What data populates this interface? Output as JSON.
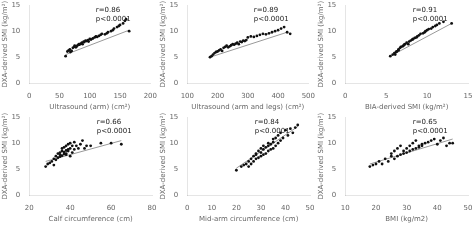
{
  "chart_data": [
    {
      "type": "scatter",
      "xlabel": "Ultrasound (arm) (cm²)",
      "ylabel": "DXA-derived SMI (kg/m²)",
      "annotations": [
        "r=0.86",
        "p<0.0001"
      ],
      "xlim": [
        0,
        200
      ],
      "xticks": [
        0,
        50,
        100,
        150,
        200
      ],
      "ylim": [
        0,
        15
      ],
      "yticks": [
        0,
        5,
        10,
        15
      ],
      "grid": false,
      "series": [
        {
          "type": "scatter",
          "color": "#111111",
          "x": [
            60,
            63,
            65,
            67,
            68,
            70,
            72,
            74,
            75,
            77,
            78,
            80,
            82,
            83,
            85,
            87,
            88,
            90,
            91,
            93,
            95,
            97,
            98,
            100,
            102,
            105,
            108,
            110,
            112,
            115,
            118,
            120,
            125,
            128,
            130,
            135,
            138,
            140,
            145,
            148,
            150,
            155,
            158,
            160,
            165
          ],
          "values": [
            5.2,
            6.1,
            6.3,
            6.5,
            6.0,
            6.2,
            6.8,
            7.0,
            7.2,
            6.9,
            7.1,
            7.3,
            7.5,
            7.4,
            7.6,
            7.8,
            7.5,
            8.0,
            7.9,
            8.2,
            8.1,
            8.3,
            8.0,
            8.5,
            8.4,
            8.6,
            8.8,
            9.0,
            8.9,
            9.1,
            9.3,
            9.5,
            9.4,
            9.6,
            9.8,
            10.0,
            10.2,
            10.5,
            10.8,
            11.0,
            11.2,
            11.5,
            12.0,
            12.3,
            10.0
          ]
        },
        {
          "type": "line",
          "color": "#999999",
          "x": [
            60,
            165
          ],
          "values": [
            5.5,
            10.2
          ]
        }
      ]
    },
    {
      "type": "scatter",
      "xlabel": "Ultrasound (arm and legs) (cm²)",
      "ylabel": "DXA-derived SMI (kg/m²)",
      "annotations": [
        "r=0.89",
        "p<0.0001"
      ],
      "xlim": [
        100,
        500
      ],
      "xticks": [
        100,
        200,
        300,
        400,
        500
      ],
      "ylim": [
        0,
        15
      ],
      "yticks": [
        0,
        5,
        10,
        15
      ],
      "grid": false,
      "series": [
        {
          "type": "scatter",
          "color": "#111111",
          "x": [
            175,
            180,
            185,
            190,
            195,
            200,
            205,
            210,
            215,
            220,
            225,
            230,
            235,
            240,
            245,
            250,
            255,
            260,
            265,
            270,
            275,
            280,
            285,
            290,
            295,
            300,
            310,
            320,
            330,
            340,
            350,
            360,
            370,
            380,
            390,
            400,
            410,
            420,
            430,
            440
          ],
          "values": [
            5.0,
            5.2,
            5.5,
            5.8,
            6.0,
            6.1,
            6.3,
            6.5,
            6.2,
            6.8,
            7.0,
            7.2,
            6.9,
            7.1,
            7.3,
            7.5,
            7.4,
            7.6,
            7.8,
            7.5,
            8.0,
            7.9,
            8.2,
            8.1,
            8.3,
            8.8,
            9.0,
            8.9,
            9.1,
            9.3,
            9.5,
            9.4,
            9.6,
            9.8,
            10.0,
            10.2,
            10.5,
            10.8,
            9.8,
            9.5
          ]
        },
        {
          "type": "line",
          "color": "#999999",
          "x": [
            175,
            430
          ],
          "values": [
            5.0,
            9.8
          ]
        }
      ]
    },
    {
      "type": "scatter",
      "xlabel": "BIA-derived SMI (kg/m²)",
      "ylabel": "DXA-derived SMI (kg/m²)",
      "annotations": [
        "r=0.91",
        "p<0.0001"
      ],
      "xlim": [
        0,
        15
      ],
      "xticks": [
        0,
        5,
        10,
        15
      ],
      "ylim": [
        0,
        15
      ],
      "yticks": [
        0,
        5,
        10,
        15
      ],
      "grid": false,
      "series": [
        {
          "type": "scatter",
          "color": "#111111",
          "x": [
            5.5,
            5.8,
            6.0,
            6.1,
            6.2,
            6.3,
            6.5,
            6.5,
            6.7,
            6.8,
            7.0,
            7.1,
            7.2,
            7.3,
            7.5,
            7.7,
            7.8,
            8.0,
            8.2,
            8.3,
            8.5,
            8.7,
            8.8,
            9.0,
            9.2,
            9.5,
            9.7,
            9.8,
            10.0,
            10.2,
            10.5,
            10.7,
            11.0,
            11.2,
            11.5,
            12.0,
            13.0
          ],
          "values": [
            5.2,
            5.5,
            5.8,
            5.5,
            6.0,
            6.1,
            6.3,
            6.5,
            6.8,
            7.0,
            7.1,
            7.2,
            7.4,
            7.5,
            7.8,
            7.5,
            8.0,
            8.2,
            8.4,
            8.5,
            8.7,
            8.8,
            9.0,
            9.2,
            9.5,
            9.6,
            9.8,
            10.0,
            10.2,
            10.4,
            10.5,
            10.8,
            11.0,
            11.2,
            11.5,
            11.8,
            11.5
          ]
        },
        {
          "type": "line",
          "color": "#999999",
          "x": [
            5.5,
            13.0
          ],
          "values": [
            5.2,
            11.5
          ]
        }
      ]
    },
    {
      "type": "scatter",
      "xlabel": "Calf circumference (cm)",
      "ylabel": "DXA-derived SMI (kg/m²)",
      "annotations": [
        "r=0.66",
        "p<0.0001"
      ],
      "xlim": [
        20,
        80
      ],
      "xticks": [
        20,
        40,
        60,
        80
      ],
      "ylim": [
        0,
        15
      ],
      "yticks": [
        0,
        5,
        10,
        15
      ],
      "grid": false,
      "series": [
        {
          "type": "scatter",
          "color": "#111111",
          "x": [
            28,
            29,
            30,
            31,
            32,
            32,
            33,
            33,
            34,
            34,
            35,
            35,
            35,
            36,
            36,
            36,
            37,
            37,
            37,
            38,
            38,
            38,
            38,
            39,
            39,
            39,
            40,
            40,
            40,
            41,
            41,
            42,
            42,
            43,
            44,
            45,
            46,
            47,
            48,
            50,
            55,
            60,
            65
          ],
          "values": [
            5.5,
            6.0,
            6.2,
            6.5,
            5.8,
            7.0,
            6.8,
            7.5,
            7.2,
            8.0,
            7.4,
            7.8,
            8.2,
            7.6,
            8.5,
            9.0,
            7.9,
            8.3,
            9.2,
            7.8,
            8.6,
            9.5,
            8.0,
            8.8,
            9.8,
            8.5,
            7.5,
            9.0,
            10.0,
            8.2,
            9.5,
            8.8,
            10.2,
            9.5,
            9.0,
            9.8,
            10.5,
            9.0,
            9.5,
            9.5,
            10.0,
            10.0,
            9.8
          ]
        },
        {
          "type": "line",
          "color": "#999999",
          "x": [
            28,
            65
          ],
          "values": [
            6.5,
            10.5
          ]
        }
      ]
    },
    {
      "type": "scatter",
      "xlabel": "Mid-arm circumference (cm)",
      "ylabel": "DXA-derived SMI (kg/m²)",
      "annotations": [
        "r=0.84",
        "p<0.0001"
      ],
      "xlim": [
        0,
        50
      ],
      "xticks": [
        0,
        10,
        20,
        30,
        40,
        50
      ],
      "ylim": [
        0,
        15
      ],
      "yticks": [
        0,
        5,
        10,
        15
      ],
      "grid": false,
      "series": [
        {
          "type": "scatter",
          "color": "#111111",
          "x": [
            20,
            22,
            23,
            24,
            25,
            25,
            26,
            26,
            27,
            27,
            28,
            28,
            28,
            29,
            29,
            30,
            30,
            30,
            31,
            31,
            31,
            32,
            32,
            33,
            33,
            33,
            34,
            34,
            35,
            35,
            35,
            36,
            36,
            37,
            37,
            38,
            38,
            39,
            40,
            41,
            42,
            43,
            44,
            45
          ],
          "values": [
            4.8,
            5.5,
            5.8,
            6.0,
            5.5,
            6.5,
            6.0,
            7.0,
            6.5,
            7.5,
            7.0,
            7.8,
            8.0,
            7.2,
            8.5,
            7.5,
            8.2,
            9.0,
            7.8,
            8.8,
            9.5,
            8.0,
            9.2,
            8.5,
            9.5,
            10.0,
            8.8,
            9.8,
            9.0,
            10.2,
            10.8,
            9.5,
            11.0,
            10.0,
            11.5,
            10.5,
            12.0,
            11.0,
            12.5,
            11.5,
            12.8,
            12.0,
            13.0,
            13.5
          ]
        },
        {
          "type": "line",
          "color": "#999999",
          "x": [
            20,
            45
          ],
          "values": [
            5.2,
            13.2
          ]
        }
      ]
    },
    {
      "type": "scatter",
      "xlabel": "BMI (kg/m2)",
      "ylabel": "DXA-derived SMI (kg/m²)",
      "annotations": [
        "r=0.65",
        "p<0.0001"
      ],
      "xlim": [
        10,
        50
      ],
      "xticks": [
        10,
        20,
        30,
        40,
        50
      ],
      "ylim": [
        0,
        15
      ],
      "yticks": [
        0,
        5,
        10,
        15
      ],
      "grid": false,
      "series": [
        {
          "type": "scatter",
          "color": "#111111",
          "x": [
            18,
            19,
            20,
            21,
            22,
            23,
            24,
            25,
            25,
            26,
            26,
            27,
            27,
            28,
            28,
            29,
            29,
            30,
            30,
            31,
            31,
            32,
            32,
            33,
            33,
            34,
            34,
            35,
            35,
            36,
            37,
            38,
            39,
            40,
            41,
            42,
            43,
            44,
            45
          ],
          "values": [
            5.5,
            5.8,
            6.0,
            6.5,
            6.0,
            7.0,
            6.5,
            7.5,
            8.0,
            7.0,
            8.5,
            7.5,
            9.0,
            7.8,
            9.5,
            8.0,
            8.5,
            8.2,
            9.0,
            8.5,
            9.5,
            8.8,
            10.0,
            9.0,
            10.5,
            9.5,
            9.2,
            9.8,
            9.5,
            10.0,
            10.2,
            10.5,
            10.8,
            9.8,
            10.5,
            11.0,
            9.5,
            10.0,
            10.0
          ]
        },
        {
          "type": "line",
          "color": "#999999",
          "x": [
            18,
            45
          ],
          "values": [
            6.0,
            10.8
          ]
        }
      ]
    }
  ]
}
